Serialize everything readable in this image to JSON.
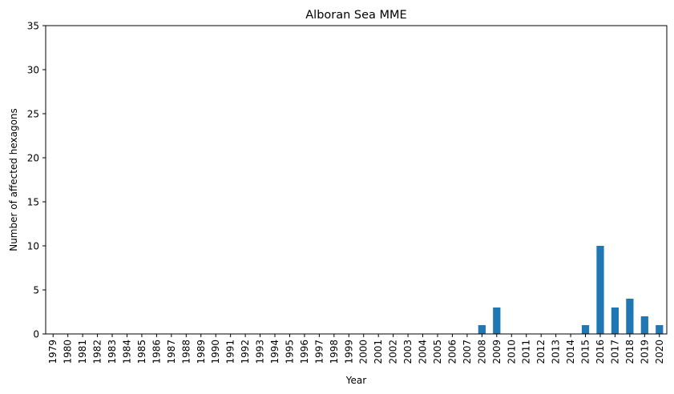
{
  "chart_data": {
    "type": "bar",
    "title": "Alboran Sea MME",
    "xlabel": "Year",
    "ylabel": "Number of affected hexagons",
    "ylim": [
      0,
      35
    ],
    "yticks": [
      0,
      5,
      10,
      15,
      20,
      25,
      30,
      35
    ],
    "grid": false,
    "bar_color": "#1f77b4",
    "categories": [
      "1979",
      "1980",
      "1981",
      "1982",
      "1983",
      "1984",
      "1985",
      "1986",
      "1987",
      "1988",
      "1989",
      "1990",
      "1991",
      "1992",
      "1993",
      "1994",
      "1995",
      "1996",
      "1997",
      "1998",
      "1999",
      "2000",
      "2001",
      "2002",
      "2003",
      "2004",
      "2005",
      "2006",
      "2007",
      "2008",
      "2009",
      "2010",
      "2011",
      "2012",
      "2013",
      "2014",
      "2015",
      "2016",
      "2017",
      "2018",
      "2019",
      "2020"
    ],
    "values": [
      0,
      0,
      0,
      0,
      0,
      0,
      0,
      0,
      0,
      0,
      0,
      0,
      0,
      0,
      0,
      0,
      0,
      0,
      0,
      0,
      0,
      0,
      0,
      0,
      0,
      0,
      0,
      0,
      0,
      1,
      3,
      0,
      0,
      0,
      0,
      0,
      1,
      10,
      3,
      4,
      2,
      1
    ]
  }
}
